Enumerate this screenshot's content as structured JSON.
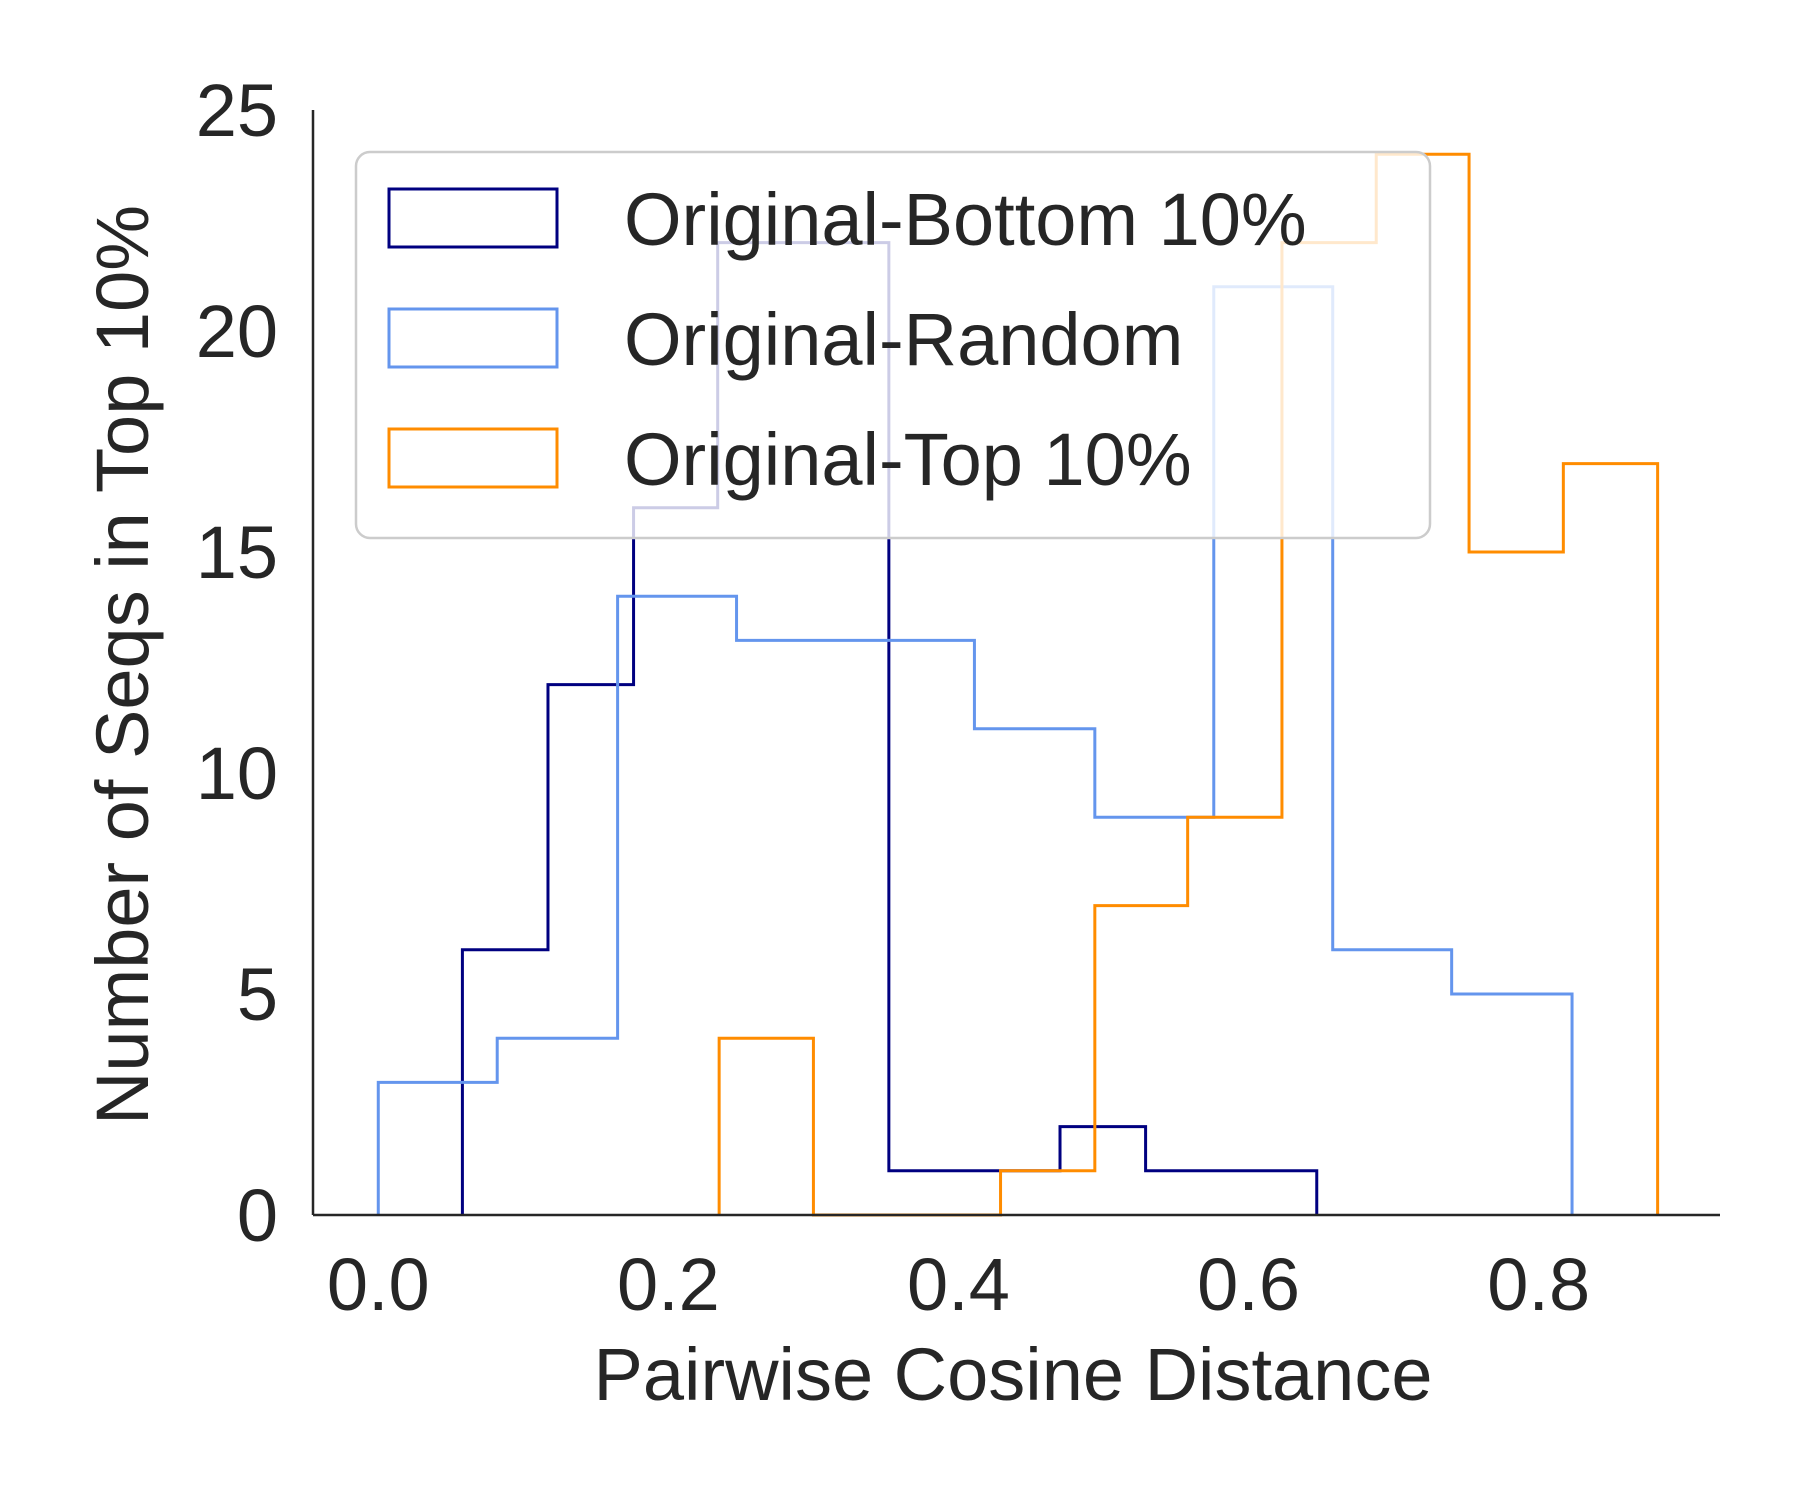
{
  "chart_data": {
    "type": "histogram",
    "xlabel": "Pairwise Cosine Distance",
    "ylabel": "Number of Seqs in Top 10%",
    "xlim": [
      -0.045,
      0.925
    ],
    "ylim": [
      0,
      25
    ],
    "xticks": [
      "0.0",
      "0.2",
      "0.4",
      "0.6",
      "0.8"
    ],
    "xtick_values": [
      0.0,
      0.2,
      0.4,
      0.6,
      0.8
    ],
    "yticks": [
      "0",
      "5",
      "10",
      "15",
      "20",
      "25"
    ],
    "ytick_values": [
      0,
      5,
      10,
      15,
      20,
      25
    ],
    "legend_position": "upper-left",
    "series": [
      {
        "name": "Original-Bottom 10%",
        "color": "#000080",
        "bin_edges": [
          0.058,
          0.117,
          0.176,
          0.234,
          0.293,
          0.352,
          0.411,
          0.47,
          0.529,
          0.588,
          0.647
        ],
        "counts": [
          6,
          12,
          16,
          22,
          22,
          1,
          1,
          2,
          1,
          1
        ]
      },
      {
        "name": "Original-Random",
        "color": "#6495ED",
        "bin_edges": [
          0.0,
          0.082,
          0.165,
          0.247,
          0.329,
          0.411,
          0.494,
          0.576,
          0.658,
          0.74,
          0.823
        ],
        "counts": [
          3,
          4,
          14,
          13,
          13,
          11,
          9,
          21,
          6,
          5
        ]
      },
      {
        "name": "Original-Top 10%",
        "color": "#FF8C00",
        "bin_edges": [
          0.235,
          0.3,
          0.364,
          0.429,
          0.494,
          0.558,
          0.623,
          0.688,
          0.752,
          0.817,
          0.882
        ],
        "counts": [
          4,
          0,
          0,
          1,
          7,
          9,
          22,
          24,
          15,
          17
        ]
      }
    ]
  }
}
